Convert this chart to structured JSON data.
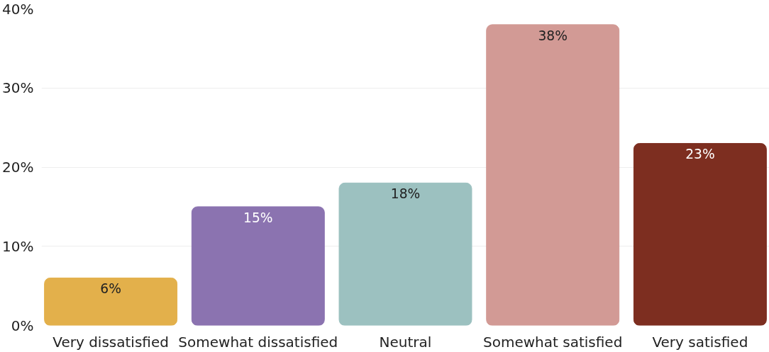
{
  "chart_data": {
    "type": "bar",
    "categories": [
      "Very dissatisfied",
      "Somewhat dissatisfied",
      "Neutral",
      "Somewhat satisfied",
      "Very satisfied"
    ],
    "values": [
      6,
      15,
      18,
      38,
      23
    ],
    "colors": [
      "#e3b04b",
      "#8b73b0",
      "#9cc1c0",
      "#d29a95",
      "#7d2e20"
    ],
    "value_labels": [
      "6%",
      "15%",
      "18%",
      "38%",
      "23%"
    ],
    "ylim": [
      0,
      40
    ],
    "yticks": [
      {
        "value": 0,
        "label": "0%"
      },
      {
        "value": 10,
        "label": "10%"
      },
      {
        "value": 20,
        "label": "20%"
      },
      {
        "value": 30,
        "label": "30%"
      },
      {
        "value": 40,
        "label": "40%"
      }
    ],
    "grid": "y"
  }
}
